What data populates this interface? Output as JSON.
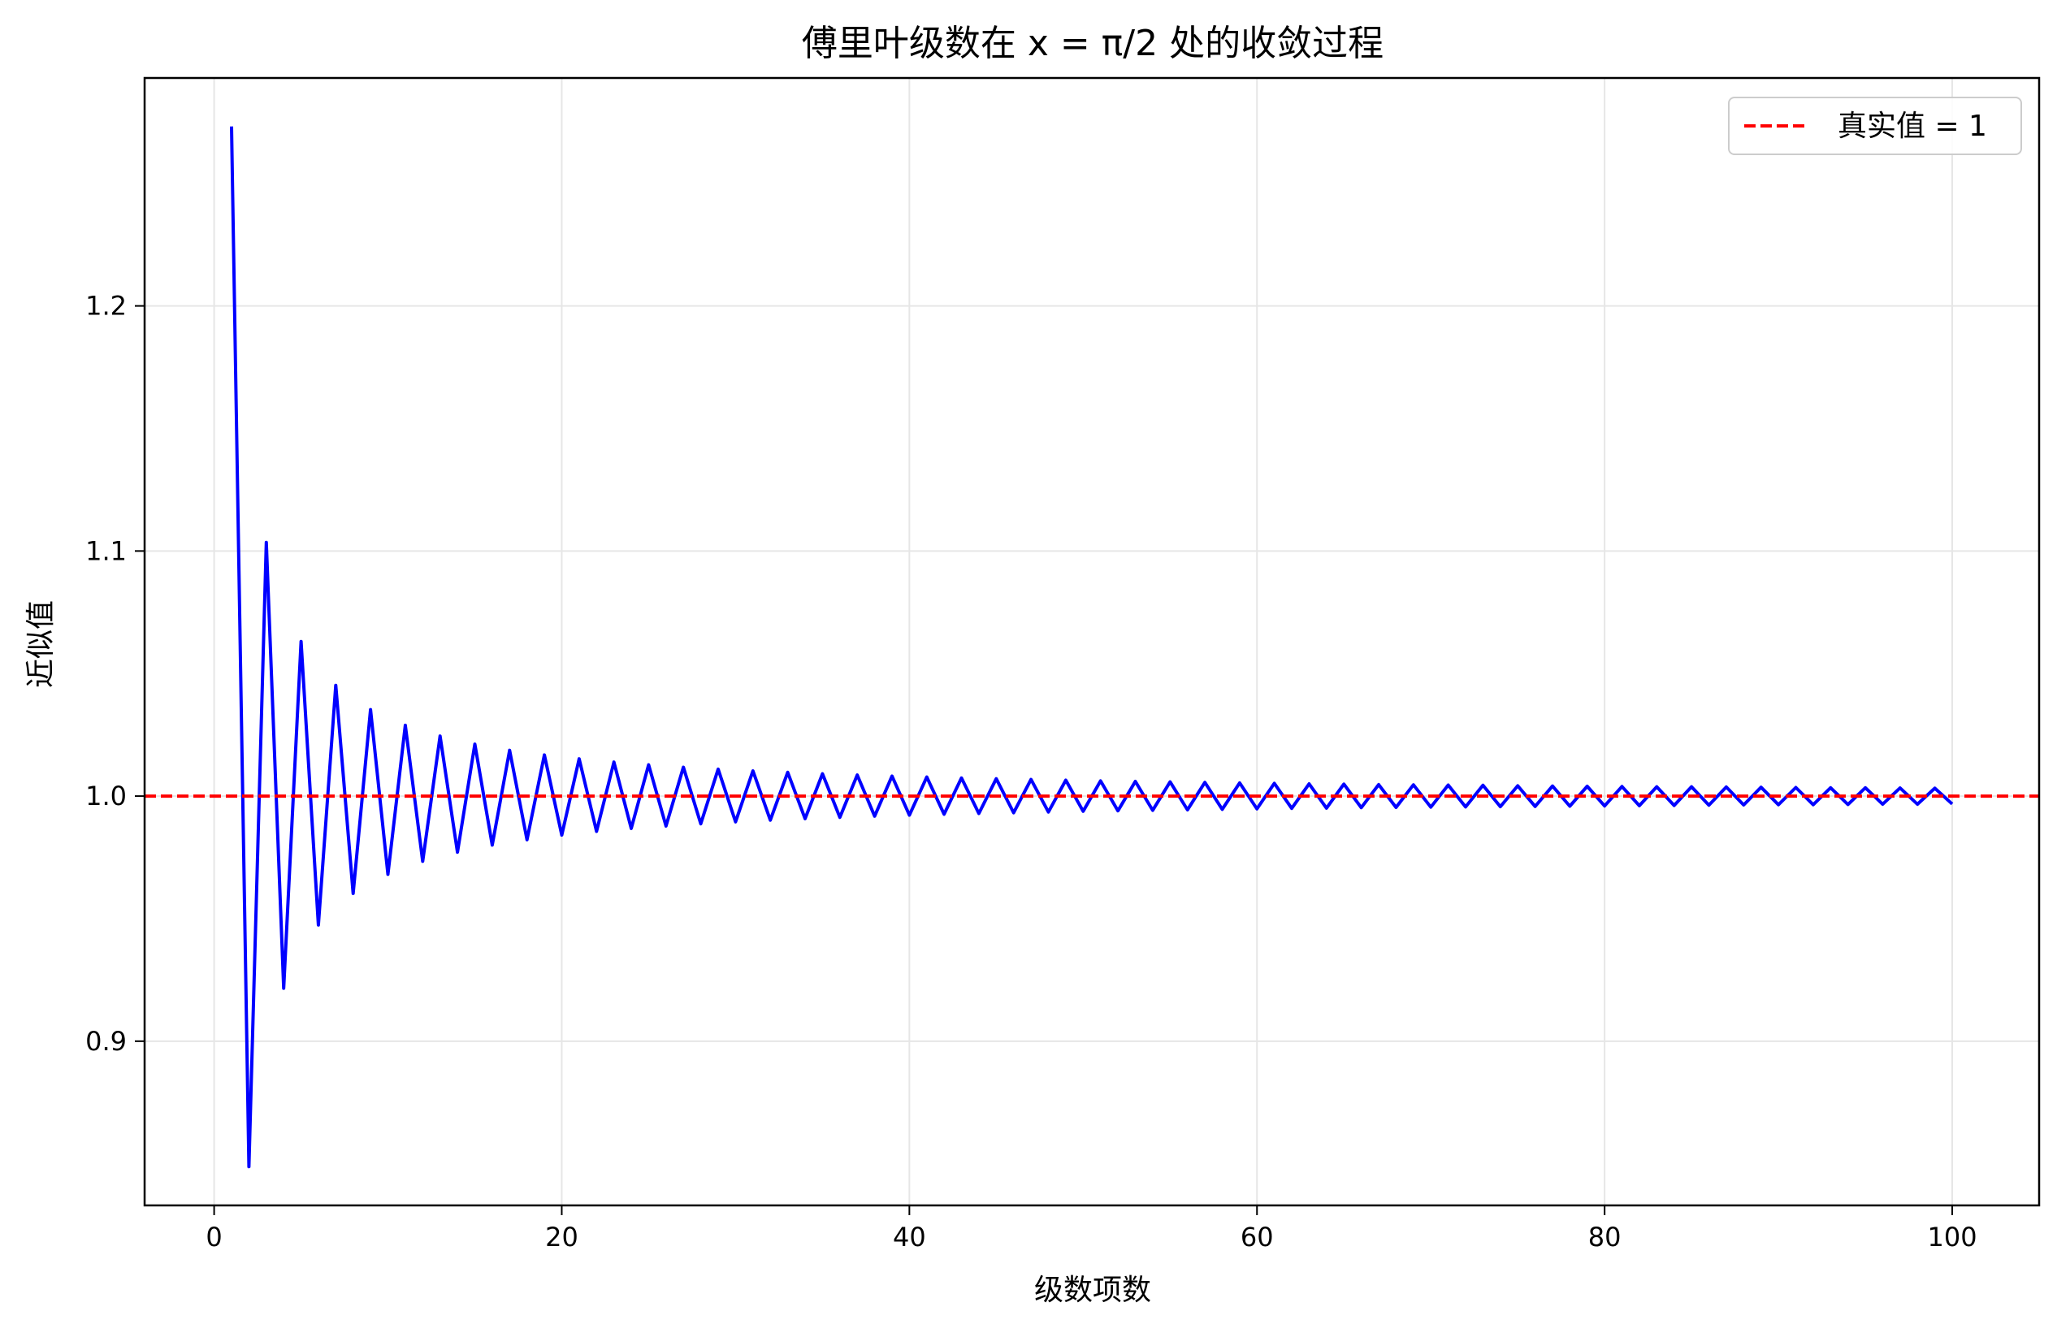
{
  "chart_data": {
    "type": "line",
    "title": "傅里叶级数在 x = π/2 处的收敛过程",
    "xlabel": "级数项数",
    "ylabel": "近似值",
    "xlim": [
      -4,
      105
    ],
    "ylim": [
      0.833,
      1.293
    ],
    "xticks": [
      0,
      20,
      40,
      60,
      80,
      100
    ],
    "xtick_labels": [
      "0",
      "20",
      "40",
      "60",
      "80",
      "100"
    ],
    "yticks": [
      0.9,
      1.0,
      1.1,
      1.2
    ],
    "ytick_labels": [
      "0.9",
      "1.0",
      "1.1",
      "1.2"
    ],
    "grid": true,
    "legend_position": "top-right",
    "series": [
      {
        "style": "solid",
        "color": "#0000ff",
        "x": [
          1,
          2,
          3,
          4,
          5,
          6,
          7,
          8,
          9,
          10,
          11,
          12,
          13,
          14,
          15,
          16,
          17,
          18,
          19,
          20,
          21,
          22,
          23,
          24,
          25,
          26,
          27,
          28,
          29,
          30,
          31,
          32,
          33,
          34,
          35,
          36,
          37,
          38,
          39,
          40,
          41,
          42,
          43,
          44,
          45,
          46,
          47,
          48,
          49,
          50,
          51,
          52,
          53,
          54,
          55,
          56,
          57,
          58,
          59,
          60,
          61,
          62,
          63,
          64,
          65,
          66,
          67,
          68,
          69,
          70,
          71,
          72,
          73,
          74,
          75,
          76,
          77,
          78,
          79,
          80,
          81,
          82,
          83,
          84,
          85,
          86,
          87,
          88,
          89,
          90,
          91,
          92,
          93,
          94,
          95,
          96,
          97,
          98,
          99,
          100
        ],
        "y": [
          1.2732,
          0.8488,
          1.1035,
          0.9216,
          1.0631,
          0.9474,
          1.0452,
          0.9603,
          1.0353,
          0.9681,
          1.0289,
          0.9734,
          1.0245,
          0.9771,
          1.0212,
          0.98,
          1.0187,
          0.9822,
          1.0168,
          0.9841,
          1.0152,
          0.9856,
          1.0139,
          0.9868,
          1.0128,
          0.9878,
          1.0118,
          0.9887,
          1.011,
          0.9895,
          1.0103,
          0.9902,
          1.0097,
          0.9908,
          1.0091,
          0.9913,
          1.0086,
          0.9918,
          1.0082,
          0.9922,
          1.0078,
          0.9926,
          1.0074,
          0.9929,
          1.0071,
          0.9932,
          1.0068,
          0.9935,
          1.0065,
          0.9938,
          1.0062,
          0.994,
          1.006,
          0.9942,
          1.0058,
          0.9944,
          1.0056,
          0.9946,
          1.0054,
          0.9948,
          1.0052,
          0.995,
          1.005,
          0.9951,
          1.0049,
          0.9953,
          1.0047,
          0.9954,
          1.0046,
          0.9955,
          1.0045,
          0.9956,
          1.0044,
          0.9957,
          1.0042,
          0.9958,
          1.0041,
          0.9959,
          1.004,
          0.996,
          1.0039,
          0.9961,
          1.0038,
          0.9962,
          1.0038,
          0.9963,
          1.0037,
          0.9964,
          1.0036,
          0.9965,
          1.0035,
          0.9965,
          1.0034,
          0.9966,
          1.0034,
          0.9967,
          1.0033,
          0.9967,
          1.0032,
          0.9968
        ]
      },
      {
        "name": "真实值 = 1",
        "style": "dashed",
        "color": "#ff0000",
        "y_constant": 1.0
      }
    ]
  }
}
